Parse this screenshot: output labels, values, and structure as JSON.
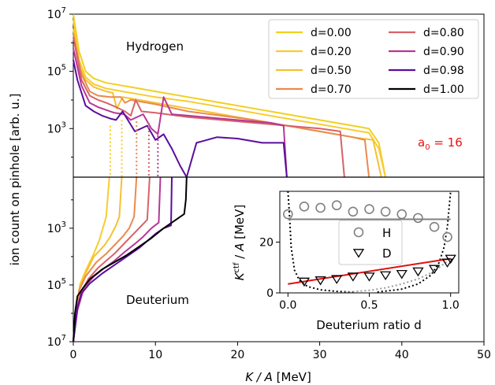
{
  "figure": {
    "ylabel": "ion count on pinhole  [arb. u.]",
    "xlabel_italic": "K / A",
    "xlabel_unit": "[MeV]",
    "x_ticks": [
      "0",
      "10",
      "20",
      "30",
      "40",
      "50"
    ]
  },
  "colors": {
    "d0": "#f0d020",
    "d20": "#f8cc30",
    "d50": "#f5c132",
    "d70": "#ea8a4e",
    "d80": "#d8626a",
    "d90": "#b63895",
    "d98": "#5a0d9e",
    "d100": "#000000",
    "text_red": "#ee1111",
    "inset_gray": "#808080",
    "inset_red": "#dd1111"
  },
  "chart_data": [
    {
      "type": "line",
      "panel": "top",
      "annotation": "Hydrogen",
      "side_label": "a",
      "side_label_sub": "0",
      "side_label_tail": " = 16",
      "xlim": [
        0,
        50
      ],
      "ylog_exp_range": [
        1.3,
        7
      ],
      "y_ticks": [
        {
          "base": "10",
          "exp": "7",
          "value": 7
        },
        {
          "base": "10",
          "exp": "5",
          "value": 5
        },
        {
          "base": "10",
          "exp": "3",
          "value": 3
        }
      ],
      "legend": [
        {
          "label": "d=0.00",
          "color_key": "d0"
        },
        {
          "label": "d=0.20",
          "color_key": "d20"
        },
        {
          "label": "d=0.50",
          "color_key": "d50"
        },
        {
          "label": "d=0.70",
          "color_key": "d70"
        },
        {
          "label": "d=0.80",
          "color_key": "d80"
        },
        {
          "label": "d=0.90",
          "color_key": "d90"
        },
        {
          "label": "d=0.98",
          "color_key": "d98"
        },
        {
          "label": "d=1.00",
          "color_key": "d100"
        }
      ],
      "series": [
        {
          "d": 0.0,
          "color_key": "d0",
          "x": [
            0,
            0.7,
            1.5,
            2.5,
            4,
            6,
            8,
            10,
            14,
            18,
            22,
            26,
            30,
            34,
            36,
            37.2,
            38
          ],
          "y": [
            7,
            5.7,
            5.0,
            4.75,
            4.6,
            4.5,
            4.4,
            4.3,
            4.1,
            3.9,
            3.7,
            3.5,
            3.3,
            3.1,
            3.0,
            2.5,
            1.3
          ]
        },
        {
          "d": 0.2,
          "color_key": "d20",
          "x": [
            0,
            0.7,
            1.5,
            2.5,
            4,
            6,
            8,
            10,
            14,
            18,
            22,
            26,
            30,
            34,
            36,
            37.2,
            38
          ],
          "y": [
            6.8,
            5.4,
            4.8,
            4.55,
            4.4,
            4.3,
            4.2,
            4.1,
            3.95,
            3.75,
            3.55,
            3.35,
            3.15,
            2.95,
            2.85,
            2.3,
            1.3
          ]
        },
        {
          "d": 0.5,
          "color_key": "d50",
          "x": [
            0,
            0.7,
            1.5,
            2.5,
            4,
            4.8,
            5.3,
            6,
            8,
            10,
            14,
            18,
            22,
            26,
            30,
            34,
            36.5,
            37.5
          ],
          "y": [
            6.5,
            5.2,
            4.7,
            4.45,
            4.3,
            4.25,
            3.7,
            4.1,
            4.0,
            3.9,
            3.7,
            3.5,
            3.3,
            3.1,
            2.9,
            2.7,
            2.6,
            1.3
          ]
        },
        {
          "d": 0.7,
          "color_key": "d70",
          "x": [
            0,
            1,
            2,
            3,
            4.5,
            5.8,
            6.3,
            7,
            8,
            10,
            14,
            18,
            22,
            26,
            30,
            34,
            35.5,
            36
          ],
          "y": [
            6.3,
            4.9,
            4.3,
            4.15,
            4.1,
            4.1,
            3.9,
            4.0,
            3.95,
            3.85,
            3.6,
            3.45,
            3.3,
            3.1,
            2.9,
            2.7,
            2.6,
            1.3
          ]
        },
        {
          "d": 0.8,
          "color_key": "d80",
          "x": [
            0,
            1,
            2,
            3,
            4,
            5.2,
            6.3,
            7,
            7.6,
            8.3,
            10,
            14,
            18,
            22,
            26,
            30,
            32.5,
            33
          ],
          "y": [
            6.2,
            4.7,
            4.15,
            4.0,
            3.9,
            3.75,
            3.6,
            3.45,
            4.0,
            3.6,
            3.55,
            3.4,
            3.3,
            3.2,
            3.1,
            3.0,
            2.9,
            1.3
          ]
        },
        {
          "d": 0.9,
          "color_key": "d90",
          "x": [
            0,
            1,
            2,
            3,
            4,
            5,
            6.2,
            7,
            8.5,
            9.5,
            10.3,
            11,
            12,
            14,
            18,
            22,
            24,
            25.6,
            26
          ],
          "y": [
            5.8,
            4.5,
            3.9,
            3.75,
            3.65,
            3.55,
            3.5,
            3.3,
            3.5,
            3.0,
            2.8,
            4.1,
            3.5,
            3.45,
            3.35,
            3.25,
            3.2,
            3.1,
            1.3
          ]
        },
        {
          "d": 0.98,
          "color_key": "d98",
          "x": [
            0,
            0.5,
            1.5,
            2.5,
            3.5,
            4.5,
            5.2,
            6,
            7.5,
            9,
            10,
            11,
            12,
            13,
            13.8,
            15,
            17.5,
            20,
            23,
            25.6,
            26
          ],
          "y": [
            5.4,
            4.7,
            3.8,
            3.6,
            3.45,
            3.35,
            3.3,
            3.6,
            2.9,
            3.1,
            2.6,
            2.8,
            2.3,
            1.7,
            1.3,
            2.5,
            2.7,
            2.65,
            2.5,
            2.5,
            1.3
          ]
        }
      ],
      "cutoff_dots": [
        {
          "x": 4.5,
          "y_top": 3.1,
          "color_key": "d0"
        },
        {
          "x": 5.9,
          "y_top": 3.3,
          "color_key": "d20"
        },
        {
          "x": 7.7,
          "y_top": 3.25,
          "color_key": "d70"
        },
        {
          "x": 9.2,
          "y_top": 3.2,
          "color_key": "d80"
        },
        {
          "x": 10.3,
          "y_top": 2.9,
          "color_key": "d90"
        }
      ]
    },
    {
      "type": "line",
      "panel": "bottom",
      "annotation": "Deuterium",
      "xlim": [
        0,
        50
      ],
      "ylog_exp_range_inverted": [
        1.2,
        7
      ],
      "y_ticks": [
        {
          "base": "10",
          "exp": "3",
          "value": 3
        },
        {
          "base": "10",
          "exp": "5",
          "value": 5
        },
        {
          "base": "10",
          "exp": "7",
          "value": 7
        }
      ],
      "series": [
        {
          "d": 0.2,
          "color_key": "d20",
          "x": [
            4.4,
            4.0,
            3.2,
            2.5,
            1.5,
            0.8,
            0.4,
            0
          ],
          "y": [
            1.2,
            2.6,
            3.4,
            3.9,
            4.5,
            5.0,
            5.8,
            7
          ]
        },
        {
          "d": 0.5,
          "color_key": "d50",
          "x": [
            5.9,
            5.6,
            5.2,
            4.5,
            3.8,
            2.5,
            1.5,
            0.8,
            0.3,
            0
          ],
          "y": [
            1.2,
            2.6,
            2.9,
            3.3,
            3.6,
            4.0,
            4.6,
            5.1,
            5.8,
            7
          ]
        },
        {
          "d": 0.7,
          "color_key": "d70",
          "x": [
            7.7,
            7.4,
            6.8,
            6.0,
            5.0,
            4.0,
            2.8,
            1.5,
            0.7,
            0.3,
            0
          ],
          "y": [
            1.2,
            2.6,
            3.0,
            3.3,
            3.6,
            3.9,
            4.2,
            4.7,
            5.2,
            5.9,
            7
          ]
        },
        {
          "d": 0.8,
          "color_key": "d80",
          "x": [
            9.3,
            9.0,
            8.0,
            7.0,
            6.0,
            5.0,
            4.0,
            3.0,
            1.8,
            0.9,
            0.3,
            0
          ],
          "y": [
            1.2,
            2.7,
            3.0,
            3.3,
            3.6,
            3.9,
            4.15,
            4.4,
            4.8,
            5.3,
            6.0,
            7
          ]
        },
        {
          "d": 0.9,
          "color_key": "d90",
          "x": [
            10.6,
            10.4,
            9.5,
            8.5,
            7.5,
            6.2,
            5.0,
            3.8,
            2.5,
            1.3,
            0.5,
            0
          ],
          "y": [
            1.2,
            2.8,
            3.0,
            3.3,
            3.55,
            3.85,
            4.15,
            4.4,
            4.7,
            5.1,
            5.9,
            7
          ]
        },
        {
          "d": 0.98,
          "color_key": "d98",
          "x": [
            12.0,
            11.9,
            11.0,
            10.0,
            9.0,
            8.0,
            6.5,
            5.0,
            3.5,
            2.0,
            1.0,
            0.5,
            0
          ],
          "y": [
            1.2,
            2.9,
            3.0,
            3.2,
            3.45,
            3.7,
            4.0,
            4.3,
            4.6,
            4.95,
            5.3,
            5.8,
            7
          ]
        },
        {
          "d": 1.0,
          "color_key": "d100",
          "x": [
            13.8,
            13.7,
            13.5,
            12.5,
            11.0,
            9.5,
            8.0,
            6.5,
            5.0,
            3.5,
            2.0,
            1.2,
            0.5,
            0.2,
            0
          ],
          "y": [
            1.2,
            2.0,
            2.5,
            2.7,
            3.0,
            3.35,
            3.65,
            3.95,
            4.2,
            4.45,
            4.8,
            5.1,
            5.4,
            6.0,
            7
          ]
        }
      ]
    },
    {
      "type": "scatter",
      "panel": "inset",
      "xlabel": "Deuterium ratio d",
      "ylabel_italic_K": "K",
      "ylabel_sup": "ctf",
      "ylabel_tail": " / A  [MeV]",
      "ylabel_A": "A",
      "xlim": [
        -0.05,
        1.05
      ],
      "ylim": [
        0,
        40
      ],
      "x_ticks": [
        "0.0",
        "0.5",
        "1.0"
      ],
      "y_ticks": [
        "0",
        "20"
      ],
      "legend": [
        {
          "label": "H",
          "marker": "circle"
        },
        {
          "label": "D",
          "marker": "triangle-down"
        }
      ],
      "series": [
        {
          "name": "H",
          "marker": "circle",
          "x": [
            0.0,
            0.1,
            0.2,
            0.3,
            0.4,
            0.5,
            0.6,
            0.7,
            0.8,
            0.9,
            0.98
          ],
          "y": [
            31,
            34,
            33.5,
            34.5,
            32,
            33,
            32,
            31,
            29.5,
            26,
            22
          ]
        },
        {
          "name": "D",
          "marker": "triangle-down",
          "x": [
            0.1,
            0.2,
            0.3,
            0.4,
            0.5,
            0.6,
            0.7,
            0.8,
            0.9,
            0.98,
            1.0
          ],
          "y": [
            4.5,
            5,
            5.5,
            6.5,
            6.5,
            7,
            7.5,
            8.5,
            9.5,
            12,
            13.5
          ]
        }
      ],
      "lines": [
        {
          "kind": "hline",
          "y": 29,
          "color_key": "inset_gray"
        },
        {
          "kind": "segment",
          "x": [
            0.0,
            1.0
          ],
          "y": [
            3.5,
            13.5
          ],
          "color_key": "inset_red"
        }
      ]
    }
  ]
}
